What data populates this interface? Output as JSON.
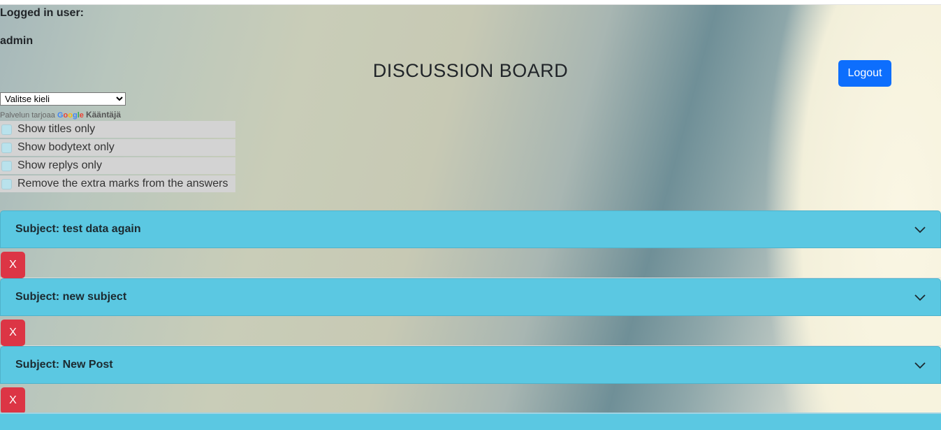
{
  "header": {
    "logged_in_label": "Logged in user:",
    "username": "admin",
    "title": "DISCUSSION BOARD",
    "logout_label": "Logout"
  },
  "translate": {
    "selected_language": "Valitse kieli",
    "powered_prefix": "Palvelun tarjoaa",
    "google_letters": [
      "G",
      "o",
      "o",
      "g",
      "l",
      "e"
    ],
    "translate_label": "Kääntäjä"
  },
  "filters": [
    {
      "label": "Show titles only",
      "checked": false
    },
    {
      "label": "Show bodytext only",
      "checked": false
    },
    {
      "label": "Show replys only",
      "checked": false
    },
    {
      "label": "Remove the extra marks from the answers",
      "checked": false
    }
  ],
  "posts": [
    {
      "subject": "Subject: test data again",
      "delete_label": "X"
    },
    {
      "subject": "Subject: new subject",
      "delete_label": "X"
    },
    {
      "subject": "Subject: New Post",
      "delete_label": "X"
    }
  ],
  "colors": {
    "accordion": "#5bc8e2",
    "primary": "#0d6efd",
    "danger": "#dc3545"
  }
}
